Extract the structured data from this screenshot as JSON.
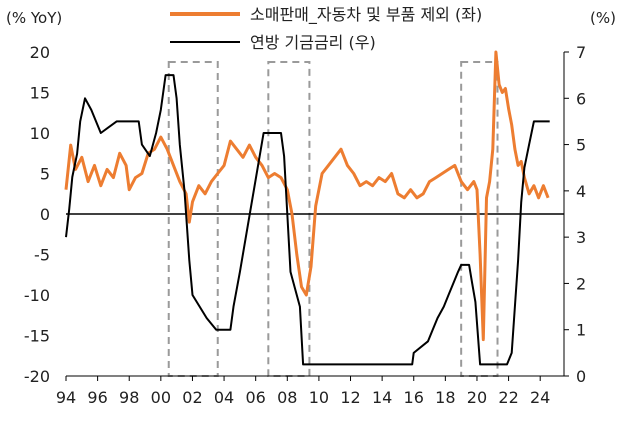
{
  "chart_data": {
    "type": "line",
    "left_axis": {
      "unit_label": "(% YoY)",
      "ylim": [
        -20,
        20
      ],
      "ticks": [
        20,
        15,
        10,
        5,
        0,
        -5,
        -10,
        -15,
        -20
      ]
    },
    "right_axis": {
      "unit_label": "(%)",
      "ylim": [
        0,
        7
      ],
      "ticks": [
        7,
        6,
        5,
        4,
        3,
        2,
        1,
        0
      ]
    },
    "x_axis": {
      "xlim": [
        1994,
        2025
      ],
      "tick_years": [
        1994,
        1996,
        1998,
        2000,
        2002,
        2004,
        2006,
        2008,
        2010,
        2012,
        2014,
        2016,
        2018,
        2020,
        2022,
        2024
      ],
      "tick_labels": [
        "94",
        "96",
        "98",
        "00",
        "02",
        "04",
        "06",
        "08",
        "10",
        "12",
        "14",
        "16",
        "18",
        "20",
        "22",
        "24"
      ]
    },
    "legend_position": "top",
    "grid": false,
    "zero_line": true,
    "series": [
      {
        "name": "소매판매_자동차 및 부품 제외 (좌)",
        "axis": "left",
        "color": "#ED7D31",
        "points": [
          [
            1994.0,
            3.0
          ],
          [
            1994.3,
            8.5
          ],
          [
            1994.6,
            5.5
          ],
          [
            1995.0,
            7.0
          ],
          [
            1995.4,
            4.0
          ],
          [
            1995.8,
            6.0
          ],
          [
            1996.2,
            3.5
          ],
          [
            1996.6,
            5.5
          ],
          [
            1997.0,
            4.5
          ],
          [
            1997.4,
            7.5
          ],
          [
            1997.8,
            6.0
          ],
          [
            1998.0,
            3.0
          ],
          [
            1998.4,
            4.5
          ],
          [
            1998.8,
            5.0
          ],
          [
            1999.2,
            7.5
          ],
          [
            1999.6,
            8.0
          ],
          [
            2000.0,
            9.5
          ],
          [
            2000.4,
            8.0
          ],
          [
            2000.8,
            6.0
          ],
          [
            2001.2,
            4.0
          ],
          [
            2001.6,
            2.5
          ],
          [
            2001.8,
            -1.0
          ],
          [
            2002.0,
            1.5
          ],
          [
            2002.4,
            3.5
          ],
          [
            2002.8,
            2.5
          ],
          [
            2003.2,
            4.0
          ],
          [
            2003.6,
            5.0
          ],
          [
            2004.0,
            6.0
          ],
          [
            2004.4,
            9.0
          ],
          [
            2004.8,
            8.0
          ],
          [
            2005.2,
            7.0
          ],
          [
            2005.6,
            8.5
          ],
          [
            2006.0,
            7.0
          ],
          [
            2006.4,
            6.0
          ],
          [
            2006.8,
            4.5
          ],
          [
            2007.2,
            5.0
          ],
          [
            2007.6,
            4.5
          ],
          [
            2008.0,
            3.0
          ],
          [
            2008.3,
            0.0
          ],
          [
            2008.6,
            -5.0
          ],
          [
            2008.9,
            -9.0
          ],
          [
            2009.2,
            -10.0
          ],
          [
            2009.5,
            -6.5
          ],
          [
            2009.8,
            1.0
          ],
          [
            2010.2,
            5.0
          ],
          [
            2010.6,
            6.0
          ],
          [
            2011.0,
            7.0
          ],
          [
            2011.4,
            8.0
          ],
          [
            2011.8,
            6.0
          ],
          [
            2012.2,
            5.0
          ],
          [
            2012.6,
            3.5
          ],
          [
            2013.0,
            4.0
          ],
          [
            2013.4,
            3.5
          ],
          [
            2013.8,
            4.5
          ],
          [
            2014.2,
            4.0
          ],
          [
            2014.6,
            5.0
          ],
          [
            2015.0,
            2.5
          ],
          [
            2015.4,
            2.0
          ],
          [
            2015.8,
            3.0
          ],
          [
            2016.2,
            2.0
          ],
          [
            2016.6,
            2.5
          ],
          [
            2017.0,
            4.0
          ],
          [
            2017.4,
            4.5
          ],
          [
            2017.8,
            5.0
          ],
          [
            2018.2,
            5.5
          ],
          [
            2018.6,
            6.0
          ],
          [
            2019.0,
            4.0
          ],
          [
            2019.4,
            3.0
          ],
          [
            2019.8,
            4.0
          ],
          [
            2020.0,
            3.0
          ],
          [
            2020.2,
            -5.0
          ],
          [
            2020.4,
            -15.5
          ],
          [
            2020.6,
            2.0
          ],
          [
            2020.8,
            4.0
          ],
          [
            2021.0,
            8.0
          ],
          [
            2021.2,
            20.0
          ],
          [
            2021.4,
            16.0
          ],
          [
            2021.6,
            15.0
          ],
          [
            2021.8,
            15.5
          ],
          [
            2022.0,
            13.0
          ],
          [
            2022.2,
            11.0
          ],
          [
            2022.4,
            8.0
          ],
          [
            2022.6,
            6.0
          ],
          [
            2022.8,
            6.5
          ],
          [
            2023.0,
            4.5
          ],
          [
            2023.3,
            2.5
          ],
          [
            2023.6,
            3.5
          ],
          [
            2023.9,
            2.0
          ],
          [
            2024.2,
            3.5
          ],
          [
            2024.5,
            2.0
          ]
        ]
      },
      {
        "name": "연방 기금금리 (우)",
        "axis": "right",
        "color": "#000000",
        "points": [
          [
            1994.0,
            3.0
          ],
          [
            1994.2,
            3.6
          ],
          [
            1994.4,
            4.3
          ],
          [
            1994.7,
            4.8
          ],
          [
            1994.9,
            5.5
          ],
          [
            1995.2,
            6.0
          ],
          [
            1995.6,
            5.75
          ],
          [
            1996.2,
            5.25
          ],
          [
            1997.2,
            5.5
          ],
          [
            1998.6,
            5.5
          ],
          [
            1998.8,
            5.0
          ],
          [
            1999.3,
            4.75
          ],
          [
            1999.7,
            5.25
          ],
          [
            2000.0,
            5.75
          ],
          [
            2000.3,
            6.5
          ],
          [
            2000.8,
            6.5
          ],
          [
            2001.0,
            6.0
          ],
          [
            2001.2,
            5.0
          ],
          [
            2001.5,
            4.0
          ],
          [
            2001.8,
            2.5
          ],
          [
            2002.0,
            1.75
          ],
          [
            2002.9,
            1.25
          ],
          [
            2003.5,
            1.0
          ],
          [
            2004.4,
            1.0
          ],
          [
            2004.6,
            1.5
          ],
          [
            2005.0,
            2.25
          ],
          [
            2005.5,
            3.25
          ],
          [
            2006.0,
            4.25
          ],
          [
            2006.5,
            5.25
          ],
          [
            2007.6,
            5.25
          ],
          [
            2007.8,
            4.75
          ],
          [
            2008.0,
            3.5
          ],
          [
            2008.2,
            2.25
          ],
          [
            2008.8,
            1.5
          ],
          [
            2009.0,
            0.25
          ],
          [
            2015.9,
            0.25
          ],
          [
            2016.0,
            0.5
          ],
          [
            2016.9,
            0.75
          ],
          [
            2017.2,
            1.0
          ],
          [
            2017.5,
            1.25
          ],
          [
            2017.9,
            1.5
          ],
          [
            2018.2,
            1.75
          ],
          [
            2018.5,
            2.0
          ],
          [
            2018.8,
            2.25
          ],
          [
            2019.0,
            2.4
          ],
          [
            2019.5,
            2.4
          ],
          [
            2019.7,
            2.0
          ],
          [
            2019.9,
            1.6
          ],
          [
            2020.2,
            0.25
          ],
          [
            2021.9,
            0.25
          ],
          [
            2022.2,
            0.5
          ],
          [
            2022.4,
            1.5
          ],
          [
            2022.6,
            2.5
          ],
          [
            2022.8,
            3.75
          ],
          [
            2023.0,
            4.5
          ],
          [
            2023.3,
            5.0
          ],
          [
            2023.6,
            5.5
          ],
          [
            2024.6,
            5.5
          ]
        ]
      }
    ],
    "recession_boxes": [
      {
        "from_year": 2000.5,
        "to_year": 2003.6
      },
      {
        "from_year": 2006.8,
        "to_year": 2009.4
      },
      {
        "from_year": 2019.0,
        "to_year": 2021.3
      }
    ]
  }
}
